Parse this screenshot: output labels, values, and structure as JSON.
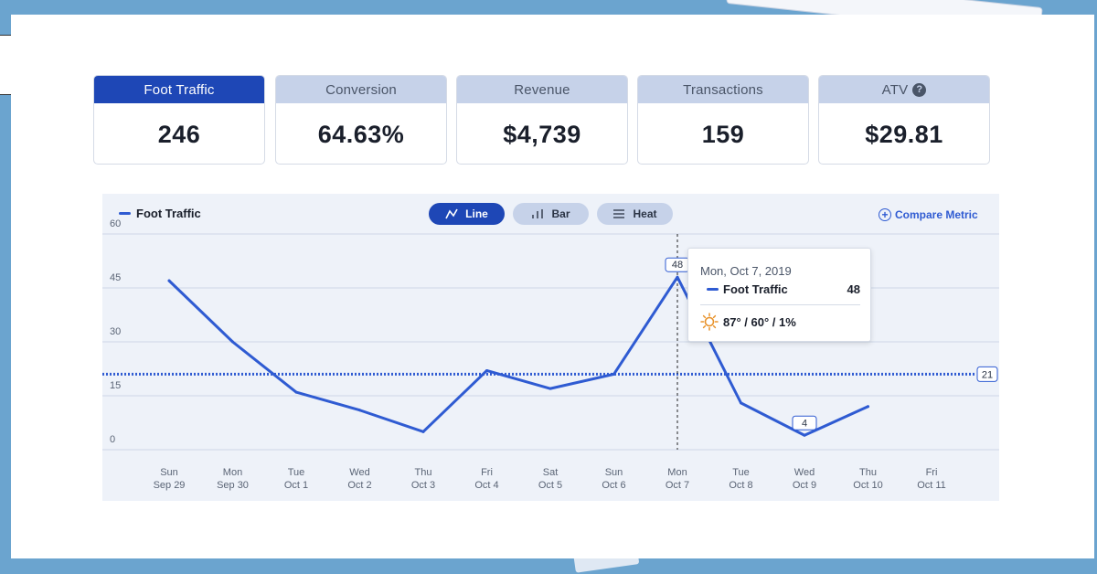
{
  "metrics": [
    {
      "label": "Foot Traffic",
      "value": "246",
      "active": true
    },
    {
      "label": "Conversion",
      "value": "64.63%",
      "active": false
    },
    {
      "label": "Revenue",
      "value": "$4,739",
      "active": false
    },
    {
      "label": "Transactions",
      "value": "159",
      "active": false
    },
    {
      "label": "ATV",
      "value": "$29.81",
      "active": false,
      "help_icon": "question-circle-icon"
    }
  ],
  "toolbar": {
    "legend_label": "Foot Traffic",
    "view_buttons": [
      {
        "label": "Line",
        "icon": "line-chart-icon",
        "selected": true
      },
      {
        "label": "Bar",
        "icon": "bar-chart-icon",
        "selected": false
      },
      {
        "label": "Heat",
        "icon": "heat-map-icon",
        "selected": false
      }
    ],
    "compare_label": "Compare Metric"
  },
  "tooltip": {
    "date": "Mon, Oct 7, 2019",
    "series_label": "Foot Traffic",
    "series_value": "48",
    "weather": "87° / 60° / 1%",
    "weather_icon": "sun-icon"
  },
  "colors": {
    "accent": "#1e47b6",
    "line": "#2f5bd2",
    "inactive_tab": "#c6d2e9"
  },
  "chart_data": {
    "type": "line",
    "series": [
      {
        "name": "Foot Traffic",
        "values": [
          47,
          30,
          16,
          11,
          5,
          22,
          17,
          21,
          48,
          13,
          4,
          12
        ]
      }
    ],
    "x_top": [
      "Sun",
      "Mon",
      "Tue",
      "Wed",
      "Thu",
      "Fri",
      "Sat",
      "Sun",
      "Mon",
      "Tue",
      "Wed",
      "Thu",
      "Fri"
    ],
    "x_bottom": [
      "Sep 29",
      "Sep 30",
      "Oct 1",
      "Oct 2",
      "Oct 3",
      "Oct 4",
      "Oct 5",
      "Oct 6",
      "Oct 7",
      "Oct 8",
      "Oct 9",
      "Oct 10",
      "Oct 11"
    ],
    "y_ticks": [
      0,
      15,
      30,
      45,
      60
    ],
    "ylim": [
      0,
      60
    ],
    "average_line": {
      "value": 21,
      "label": "21"
    },
    "labeled_points": [
      {
        "index": 8,
        "label": "48"
      },
      {
        "index": 10,
        "label": "4"
      }
    ],
    "hover_index": 8,
    "grid": true
  }
}
